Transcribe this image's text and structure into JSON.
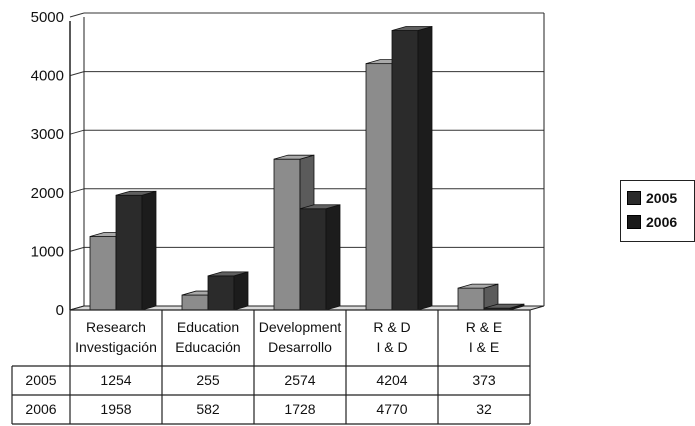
{
  "chart_data": {
    "type": "bar",
    "three_d": true,
    "categories": [
      [
        "Research",
        "Investigación"
      ],
      [
        "Education",
        "Educación"
      ],
      [
        "Development",
        "Desarrollo"
      ],
      [
        "R & D",
        "I & D"
      ],
      [
        "R & E",
        "I & E"
      ]
    ],
    "series": [
      {
        "name": "2005",
        "values": [
          1254,
          255,
          2574,
          4204,
          373
        ],
        "color": "#8c8c8c"
      },
      {
        "name": "2006",
        "values": [
          1958,
          582,
          1728,
          4770,
          32
        ],
        "color": "#2b2b2b"
      }
    ],
    "ylim": [
      0,
      5000
    ],
    "yticks": [
      "0",
      "1000",
      "2000",
      "3000",
      "4000",
      "5000"
    ],
    "grid": true,
    "legend_position": "right",
    "data_table": true
  }
}
